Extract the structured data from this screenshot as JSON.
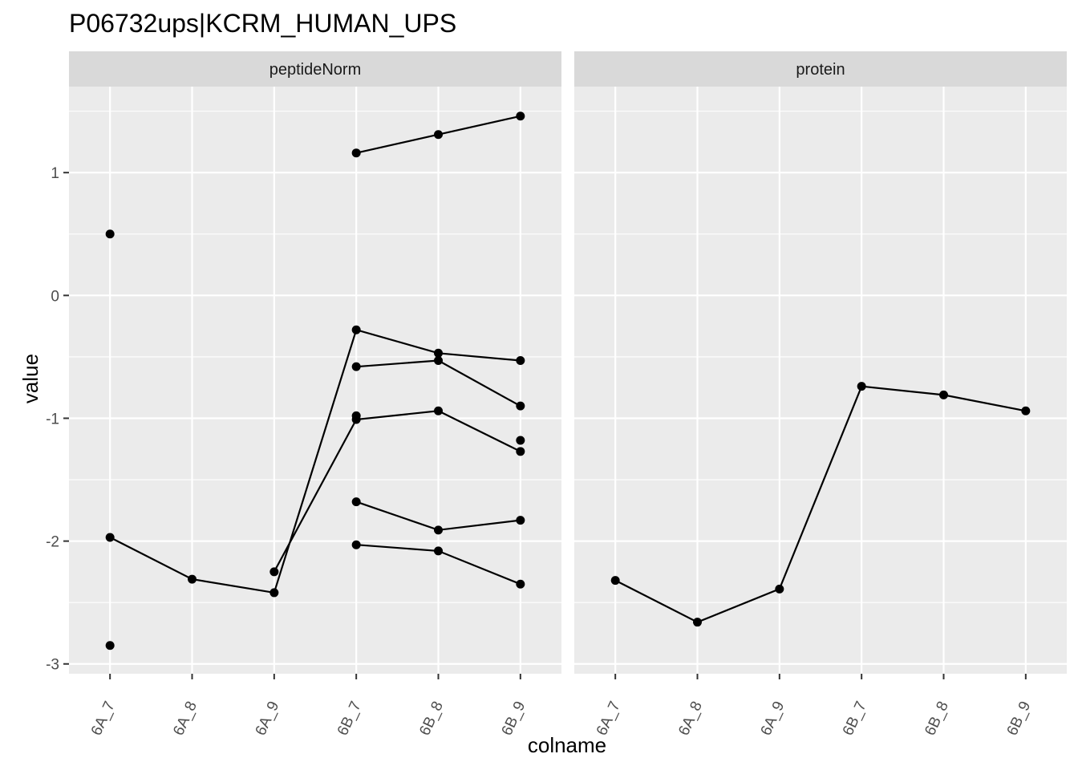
{
  "chart_data": {
    "type": "line",
    "title": "P06732ups|KCRM_HUMAN_UPS",
    "xlabel": "colname",
    "ylabel": "value",
    "ylim": [
      -3.08,
      1.7
    ],
    "yticks": [
      -3,
      -2,
      -1,
      0,
      1
    ],
    "categories": [
      "6A_7",
      "6A_8",
      "6A_9",
      "6B_7",
      "6B_8",
      "6B_9"
    ],
    "colors": {
      "panel_bg": "#ebebeb",
      "strip_bg": "#d9d9d9",
      "grid_major": "#ffffff",
      "series": "#000000"
    },
    "facets": [
      {
        "label": "peptideNorm",
        "series": [
          {
            "points": [
              [
                "6A_7",
                -1.97
              ],
              [
                "6A_8",
                -2.31
              ],
              [
                "6A_9",
                -2.42
              ],
              [
                "6B_7",
                -0.28
              ],
              [
                "6B_8",
                -0.47
              ],
              [
                "6B_9",
                -0.53
              ]
            ]
          },
          {
            "points": [
              [
                "6A_9",
                -2.25
              ],
              [
                "6B_7",
                -1.01
              ],
              [
                "6B_8",
                -0.94
              ],
              [
                "6B_9",
                -1.27
              ]
            ]
          },
          {
            "points": [
              [
                "6B_7",
                1.16
              ],
              [
                "6B_8",
                1.31
              ],
              [
                "6B_9",
                1.46
              ]
            ]
          },
          {
            "points": [
              [
                "6B_7",
                -0.58
              ],
              [
                "6B_8",
                -0.53
              ],
              [
                "6B_9",
                -0.9
              ]
            ]
          },
          {
            "points": [
              [
                "6B_7",
                -1.68
              ],
              [
                "6B_8",
                -1.91
              ],
              [
                "6B_9",
                -1.83
              ]
            ]
          },
          {
            "points": [
              [
                "6B_7",
                -2.03
              ],
              [
                "6B_8",
                -2.08
              ],
              [
                "6B_9",
                -2.35
              ]
            ]
          },
          {
            "points": [
              [
                "6A_7",
                0.5
              ]
            ]
          },
          {
            "points": [
              [
                "6A_7",
                -2.85
              ]
            ]
          },
          {
            "points": [
              [
                "6B_7",
                -0.98
              ]
            ]
          },
          {
            "points": [
              [
                "6B_9",
                -1.18
              ]
            ]
          }
        ]
      },
      {
        "label": "protein",
        "series": [
          {
            "points": [
              [
                "6A_7",
                -2.32
              ],
              [
                "6A_8",
                -2.66
              ],
              [
                "6A_9",
                -2.39
              ],
              [
                "6B_7",
                -0.74
              ],
              [
                "6B_8",
                -0.81
              ],
              [
                "6B_9",
                -0.94
              ]
            ]
          }
        ]
      }
    ]
  }
}
